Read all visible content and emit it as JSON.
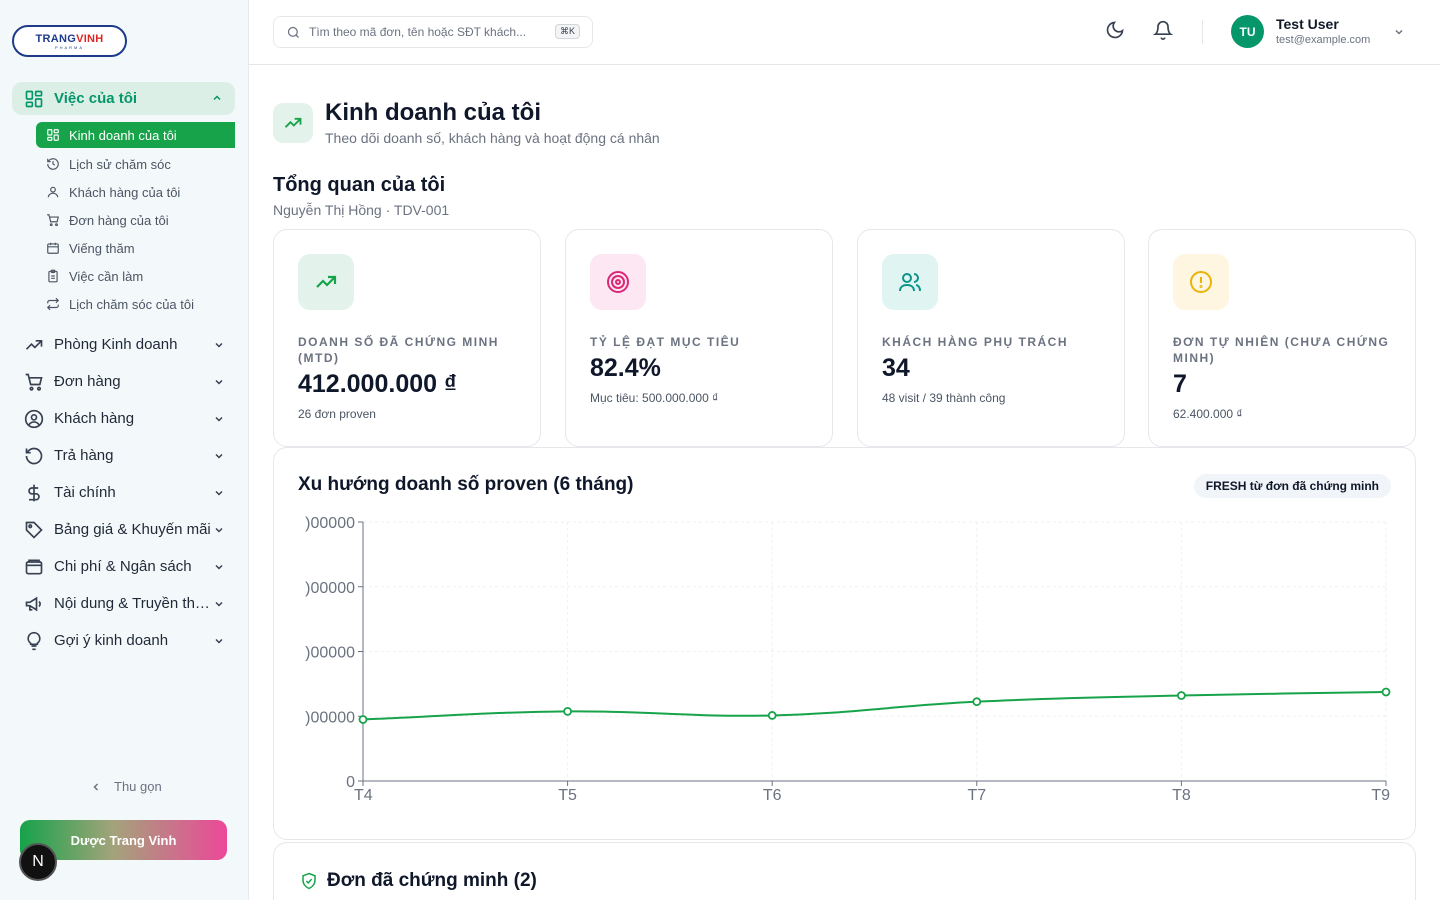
{
  "logo": {
    "name_part1": "TRANG",
    "name_part2": "VINH",
    "tagline": "PHARMA"
  },
  "sidebar": {
    "group": {
      "label": "Việc của tôi",
      "icon": "grid-icon"
    },
    "sub_items": [
      {
        "label": "Kinh doanh của tôi",
        "icon": "grid-icon",
        "active": true
      },
      {
        "label": "Lịch sử chăm sóc",
        "icon": "history-icon"
      },
      {
        "label": "Khách hàng của tôi",
        "icon": "user-icon"
      },
      {
        "label": "Đơn hàng của tôi",
        "icon": "cart-icon"
      },
      {
        "label": "Viếng thăm",
        "icon": "calendar-icon"
      },
      {
        "label": "Việc cần làm",
        "icon": "clipboard-icon"
      },
      {
        "label": "Lịch chăm sóc của tôi",
        "icon": "repeat-icon"
      }
    ],
    "main_items": [
      {
        "label": "Phòng Kinh doanh",
        "icon": "trending-up-icon"
      },
      {
        "label": "Đơn hàng",
        "icon": "cart-icon"
      },
      {
        "label": "Khách hàng",
        "icon": "user-circle-icon"
      },
      {
        "label": "Trả hàng",
        "icon": "undo-icon"
      },
      {
        "label": "Tài chính",
        "icon": "dollar-icon"
      },
      {
        "label": "Bảng giá & Khuyến mãi",
        "icon": "tag-icon"
      },
      {
        "label": "Chi phí & Ngân sách",
        "icon": "wallet-icon"
      },
      {
        "label": "Nội dung & Truyền thông",
        "icon": "megaphone-icon"
      },
      {
        "label": "Gợi ý kinh doanh",
        "icon": "lightbulb-icon"
      }
    ],
    "collapse_label": "Thu gọn",
    "brand_button": "Dược Trang Vinh",
    "badge": "N"
  },
  "header": {
    "search_placeholder": "Tìm theo mã đơn, tên hoặc SĐT khách...",
    "shortcut": "⌘K",
    "user_initials": "TU",
    "user_name": "Test User",
    "user_email": "test@example.com"
  },
  "page": {
    "title": "Kinh doanh của tôi",
    "subtitle": "Theo dõi doanh số, khách hàng và hoạt động cá nhân",
    "section_title": "Tổng quan của tôi",
    "section_sub": "Nguyễn Thị Hồng · TDV-001"
  },
  "cards": [
    {
      "label": "DOANH SỐ ĐÃ CHỨNG MINH (MTD)",
      "value": "412.000.000 ₫",
      "sub": "26 đơn proven",
      "icon": "trending-up-icon",
      "color": "#16a34a",
      "bg": "#e3f3ec"
    },
    {
      "label": "TỶ LỆ ĐẠT MỤC TIÊU",
      "value": "82.4%",
      "sub": "Mục tiêu: 500.000.000 ₫",
      "icon": "target-icon",
      "color": "#db2777",
      "bg": "#fce7f3"
    },
    {
      "label": "KHÁCH HÀNG PHỤ TRÁCH",
      "value": "34",
      "sub": "48 visit / 39 thành công",
      "icon": "users-icon",
      "color": "#0d9488",
      "bg": "#e0f5f2"
    },
    {
      "label": "ĐƠN TỰ NHIÊN (CHƯA CHỨNG MINH)",
      "value": "7",
      "sub": "62.400.000 ₫",
      "icon": "alert-circle-icon",
      "color": "#eab308",
      "bg": "#fef6e0"
    }
  ],
  "chart": {
    "title": "Xu hướng doanh số proven (6 tháng)",
    "badge": "FRESH từ đơn đã chứng minh"
  },
  "chart_data": {
    "type": "line",
    "x": [
      "T4",
      "T5",
      "T6",
      "T7",
      "T8",
      "T9"
    ],
    "series": [
      {
        "values": [
          380000000,
          430000000,
          405000000,
          490000000,
          528000000,
          550000000
        ]
      }
    ],
    "yticks": [
      0,
      400000000,
      800000000,
      1200000000,
      1600000000
    ],
    "ytick_labels": [
      "0",
      ")00000",
      ")00000",
      ")00000",
      ")00000"
    ],
    "ylim": [
      0,
      1600000000
    ],
    "color": "#16a34a",
    "grid": true
  },
  "bottom": {
    "title": "Đơn đã chứng minh (2)"
  }
}
